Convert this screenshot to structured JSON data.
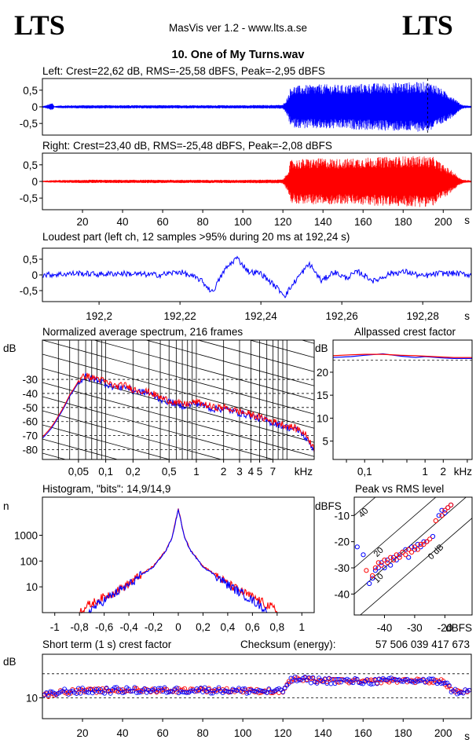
{
  "header": {
    "logo_left": "LTS",
    "logo_right": "LTS",
    "app": "MasVis ver 1.2 - www.lts.a.se",
    "file_title": "10. One of My Turns.wav"
  },
  "colors": {
    "left": "#0000ff",
    "right": "#ff0000",
    "axis": "#000000"
  },
  "chart_data": [
    {
      "id": "left_waveform",
      "type": "line",
      "title": "Left: Crest=22,62 dB, RMS=-25,58 dBFS, Peak=-2,95 dBFS",
      "ylim": [
        -0.85,
        0.85
      ],
      "yticks": [
        "0,5",
        "0",
        "-0,5"
      ],
      "ytick_values": [
        0.5,
        0,
        -0.5
      ],
      "xlim": [
        0,
        214
      ],
      "marker_x": 192.24,
      "envelope": {
        "t": [
          0,
          2,
          5,
          6,
          8,
          20,
          40,
          60,
          80,
          100,
          120,
          122,
          124,
          130,
          140,
          150,
          160,
          170,
          180,
          190,
          195,
          200,
          205,
          208,
          210,
          214
        ],
        "amp": [
          0.02,
          0.05,
          0.12,
          0.02,
          0.04,
          0.05,
          0.05,
          0.05,
          0.05,
          0.05,
          0.06,
          0.25,
          0.62,
          0.65,
          0.68,
          0.66,
          0.7,
          0.72,
          0.74,
          0.75,
          0.72,
          0.5,
          0.3,
          0.12,
          0.05,
          0.03
        ]
      }
    },
    {
      "id": "right_waveform",
      "type": "line",
      "title": "Right: Crest=23,40 dB, RMS=-25,48 dBFS, Peak=-2,08 dBFS",
      "ylim": [
        -0.85,
        0.85
      ],
      "yticks": [
        "0,5",
        "0",
        "-0,5"
      ],
      "ytick_values": [
        0.5,
        0,
        -0.5
      ],
      "xlim": [
        0,
        214
      ],
      "xticks": [
        "20",
        "40",
        "60",
        "80",
        "100",
        "120",
        "140",
        "160",
        "180",
        "200"
      ],
      "xtick_values": [
        20,
        40,
        60,
        80,
        100,
        120,
        140,
        160,
        180,
        200
      ],
      "xunit": "s",
      "envelope": {
        "t": [
          0,
          5,
          8,
          20,
          40,
          60,
          80,
          100,
          120,
          122,
          124,
          130,
          140,
          150,
          160,
          170,
          180,
          190,
          195,
          200,
          205,
          208,
          210,
          214
        ],
        "amp": [
          0.02,
          0.04,
          0.04,
          0.05,
          0.05,
          0.05,
          0.05,
          0.05,
          0.06,
          0.25,
          0.65,
          0.68,
          0.7,
          0.68,
          0.72,
          0.74,
          0.76,
          0.77,
          0.74,
          0.5,
          0.3,
          0.12,
          0.05,
          0.03
        ]
      }
    },
    {
      "id": "loudest_part",
      "type": "line",
      "title": "Loudest part (left  ch, 12 samples >95% during 20 ms at 192,24 s)",
      "ylim": [
        -0.85,
        0.85
      ],
      "yticks": [
        "0,5",
        "0",
        "-0,5"
      ],
      "ytick_values": [
        0.5,
        0,
        -0.5
      ],
      "xlim": [
        192.186,
        192.292
      ],
      "xticks": [
        "192,2",
        "192,22",
        "192,24",
        "192,26",
        "192,28"
      ],
      "xtick_values": [
        192.2,
        192.22,
        192.24,
        192.26,
        192.28
      ],
      "xunit": "s",
      "x": [
        192.186,
        192.19,
        192.195,
        192.2,
        192.205,
        192.21,
        192.215,
        192.22,
        192.225,
        192.228,
        192.231,
        192.234,
        192.237,
        192.24,
        192.243,
        192.246,
        192.249,
        192.252,
        192.255,
        192.258,
        192.261,
        192.264,
        192.268,
        192.272,
        192.276,
        192.28,
        192.284,
        192.288,
        192.292
      ],
      "y": [
        0.0,
        0.02,
        0.05,
        0.02,
        0.05,
        0.02,
        0.0,
        0.1,
        -0.15,
        -0.55,
        0.15,
        0.55,
        0.1,
        0.05,
        -0.3,
        -0.65,
        -0.1,
        0.35,
        -0.2,
        0.1,
        -0.1,
        0.1,
        -0.2,
        0.05,
        0.1,
        -0.05,
        0.05,
        0.05,
        0.0
      ]
    },
    {
      "id": "spectrum",
      "type": "line",
      "title": "Normalized average spectrum, 216 frames",
      "ylabel": "dB",
      "ylim": [
        -87,
        -2
      ],
      "yticks": [
        "-30",
        "-40",
        "-50",
        "-60",
        "-70",
        "-80"
      ],
      "ytick_values": [
        -30,
        -40,
        -50,
        -60,
        -70,
        -80
      ],
      "xscale": "log",
      "xlim": [
        0.02,
        20
      ],
      "xticks": [
        "0,05",
        "0,1",
        "0,2",
        "0,5",
        "1",
        "2",
        "3",
        "4",
        "5",
        "7"
      ],
      "xtick_values": [
        0.05,
        0.1,
        0.2,
        0.5,
        1,
        2,
        3,
        4,
        5,
        7
      ],
      "xunit": "kHz",
      "series": [
        {
          "name": "left",
          "x": [
            0.02,
            0.025,
            0.03,
            0.04,
            0.05,
            0.06,
            0.07,
            0.08,
            0.1,
            0.13,
            0.16,
            0.2,
            0.3,
            0.4,
            0.5,
            0.7,
            1,
            1.5,
            2,
            3,
            4,
            5,
            7,
            10,
            14,
            17,
            20
          ],
          "y": [
            -72,
            -65,
            -57,
            -42,
            -32,
            -28,
            -30,
            -30,
            -33,
            -36,
            -35,
            -38,
            -40,
            -44,
            -46,
            -49,
            -47,
            -51,
            -51,
            -54,
            -56,
            -58,
            -61,
            -64,
            -67,
            -74,
            -80
          ]
        },
        {
          "name": "right",
          "x": [
            0.02,
            0.025,
            0.03,
            0.04,
            0.05,
            0.06,
            0.07,
            0.08,
            0.1,
            0.13,
            0.16,
            0.2,
            0.3,
            0.4,
            0.5,
            0.7,
            1,
            1.5,
            2,
            3,
            4,
            5,
            7,
            10,
            14,
            17,
            20
          ],
          "y": [
            -71,
            -64,
            -56,
            -41,
            -31,
            -27,
            -29,
            -29,
            -32,
            -35,
            -34,
            -37,
            -39,
            -43,
            -45,
            -48,
            -46,
            -50,
            -50,
            -53,
            -55,
            -57,
            -60,
            -63,
            -66,
            -71,
            -80
          ]
        }
      ]
    },
    {
      "id": "allpassed_crest",
      "type": "line",
      "title": "Allpassed crest factor",
      "ylabel": "dB",
      "ylim": [
        1,
        27
      ],
      "yticks": [
        "20",
        "15",
        "10",
        "5"
      ],
      "ytick_values": [
        20,
        15,
        10,
        5
      ],
      "xscale": "log",
      "xlim": [
        0.03,
        6
      ],
      "xticks": [
        "0,1",
        "1",
        "2"
      ],
      "xtick_values": [
        0.1,
        1,
        2
      ],
      "xunit": "kHz",
      "reference": 22.6,
      "series": [
        {
          "name": "left",
          "x": [
            0.03,
            0.06,
            0.1,
            0.2,
            0.4,
            0.7,
            1,
            2,
            3,
            6
          ],
          "y": [
            23.2,
            23.4,
            23.7,
            24.0,
            23.5,
            23.2,
            23.4,
            23.1,
            23.0,
            23.0
          ]
        },
        {
          "name": "right",
          "x": [
            0.03,
            0.06,
            0.1,
            0.2,
            0.4,
            0.7,
            1,
            2,
            3,
            6
          ],
          "y": [
            23.6,
            23.8,
            23.9,
            23.9,
            23.7,
            23.6,
            23.5,
            23.3,
            23.2,
            23.2
          ]
        }
      ]
    },
    {
      "id": "histogram",
      "type": "line",
      "title": "Histogram, \"bits\": 14,9/14,9",
      "ylabel": "n",
      "yscale": "log",
      "ylim": [
        1,
        30000
      ],
      "yticks": [
        "1000",
        "100",
        "10"
      ],
      "ytick_values": [
        1000,
        100,
        10
      ],
      "xlim": [
        -1.1,
        1.1
      ],
      "xticks": [
        "-1",
        "-0,8",
        "-0,6",
        "-0,4",
        "-0,2",
        "0",
        "0,2",
        "0,4",
        "0,6",
        "0,8",
        "1"
      ],
      "xtick_values": [
        -1,
        -0.8,
        -0.6,
        -0.4,
        -0.2,
        0,
        0.2,
        0.4,
        0.6,
        0.8,
        1
      ],
      "series": [
        {
          "name": "left",
          "x": [
            -0.72,
            -0.6,
            -0.5,
            -0.4,
            -0.3,
            -0.2,
            -0.1,
            -0.05,
            0,
            0.05,
            0.1,
            0.2,
            0.3,
            0.4,
            0.5,
            0.6,
            0.72
          ],
          "y": [
            1.2,
            3,
            6,
            12,
            28,
            60,
            250,
            800,
            10000,
            800,
            250,
            60,
            28,
            12,
            6,
            3,
            1.2
          ]
        },
        {
          "name": "right",
          "x": [
            -0.8,
            -0.65,
            -0.5,
            -0.4,
            -0.3,
            -0.2,
            -0.1,
            -0.05,
            0,
            0.05,
            0.1,
            0.2,
            0.3,
            0.4,
            0.5,
            0.65,
            0.8
          ],
          "y": [
            1.2,
            3,
            7,
            13,
            30,
            65,
            260,
            850,
            11000,
            850,
            260,
            65,
            30,
            13,
            7,
            3,
            1.2
          ]
        }
      ]
    },
    {
      "id": "peak_vs_rms",
      "type": "scatter",
      "title": "Peak vs RMS level",
      "ylabel": "dBFS",
      "xlim": [
        -50,
        -11
      ],
      "ylim": [
        -48,
        -3
      ],
      "yticks": [
        "-10",
        "-20",
        "-30",
        "-40"
      ],
      "ytick_values": [
        -10,
        -20,
        -30,
        -40
      ],
      "xticks": [
        "-40",
        "-30",
        "-20"
      ],
      "xtick_values": [
        -40,
        -30,
        -20
      ],
      "xunit": "dBFS",
      "crest_lines": [
        {
          "label": "40",
          "offset": 40
        },
        {
          "label": "20",
          "offset": 20
        },
        {
          "label": "10",
          "offset": 10
        },
        {
          "label": "0 dB",
          "offset": 0
        }
      ],
      "series": [
        {
          "name": "left",
          "x": [
            -49,
            -47,
            -45,
            -44,
            -43,
            -42,
            -41,
            -40,
            -39,
            -38,
            -37,
            -36,
            -35,
            -34,
            -33,
            -32,
            -31,
            -30,
            -29,
            -28,
            -27,
            -26,
            -24,
            -22,
            -21,
            -20,
            -19,
            -18
          ],
          "y": [
            -22,
            -25,
            -36,
            -34,
            -31,
            -30,
            -28,
            -30,
            -27,
            -29,
            -26,
            -27,
            -25,
            -24,
            -23,
            -26,
            -22,
            -23,
            -21,
            -22,
            -20,
            -20,
            -18,
            -10,
            -8,
            -9,
            -7,
            -6
          ]
        },
        {
          "name": "right",
          "x": [
            -46,
            -44,
            -43,
            -42,
            -41,
            -40,
            -39,
            -38,
            -37,
            -36,
            -35,
            -34,
            -33,
            -32,
            -31,
            -30,
            -29,
            -28,
            -27,
            -26,
            -25,
            -23,
            -21,
            -20,
            -19,
            -18
          ],
          "y": [
            -31,
            -33,
            -30,
            -28,
            -29,
            -27,
            -28,
            -26,
            -27,
            -25,
            -26,
            -24,
            -25,
            -23,
            -24,
            -22,
            -23,
            -21,
            -21,
            -20,
            -19,
            -12,
            -10,
            -8,
            -7,
            -6
          ]
        }
      ]
    },
    {
      "id": "short_term_crest",
      "type": "scatter",
      "title": "Short term (1 s) crest factor",
      "checksum_label": "Checksum (energy):",
      "checksum_value": "57 506 039 417 673",
      "ylabel": "dB",
      "yscale": "log",
      "ylim": [
        5.5,
        35
      ],
      "yticks": [
        "10"
      ],
      "ytick_values": [
        10
      ],
      "dashed_levels": [
        10,
        20
      ],
      "xlim": [
        0,
        214
      ],
      "xticks": [
        "20",
        "40",
        "60",
        "80",
        "100",
        "120",
        "140",
        "160",
        "180",
        "200"
      ],
      "xtick_values": [
        20,
        40,
        60,
        80,
        100,
        120,
        140,
        160,
        180,
        200
      ],
      "xunit": "s",
      "level_profile": {
        "t": [
          0,
          10,
          20,
          40,
          60,
          80,
          100,
          120,
          122,
          125,
          140,
          160,
          180,
          200,
          205,
          214
        ],
        "crest_db": [
          10.5,
          12.0,
          12.2,
          12.5,
          12.4,
          12.6,
          12.3,
          12.0,
          15.0,
          17.0,
          16.5,
          16.0,
          16.5,
          16.0,
          12.0,
          12.0
        ]
      }
    }
  ]
}
